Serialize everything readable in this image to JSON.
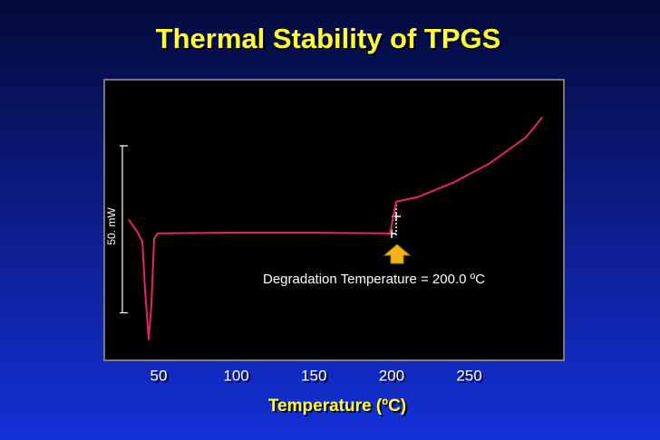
{
  "chart_data": {
    "type": "line",
    "title": "Thermal Stability of TPGS",
    "x_label": "Temperature (ºC)",
    "annotation": "Degradation Temperature = 200.0 ºC",
    "scale_bar": {
      "label": "50. mW",
      "value": 50
    },
    "xlim": [
      15,
      311
    ],
    "ylim": [
      -38,
      46
    ],
    "xticks": [
      50,
      100,
      150,
      200,
      250
    ],
    "grid": false,
    "series": [
      {
        "color": "#e8226a",
        "x": [
          30.7,
          36.5,
          39.5,
          41.2,
          43.6,
          45.3,
          47.1,
          49.4,
          100,
          150,
          199,
          200,
          203,
          216.4,
          239.8,
          263,
          286.5,
          292.3,
          297
        ],
        "values": [
          4.1,
          0.3,
          -2.4,
          -16.5,
          -31.7,
          -22,
          -1.6,
          0,
          0.2,
          0.2,
          0,
          2.4,
          9.5,
          10.8,
          15.2,
          20.9,
          28.7,
          32,
          34.7
        ]
      }
    ]
  }
}
